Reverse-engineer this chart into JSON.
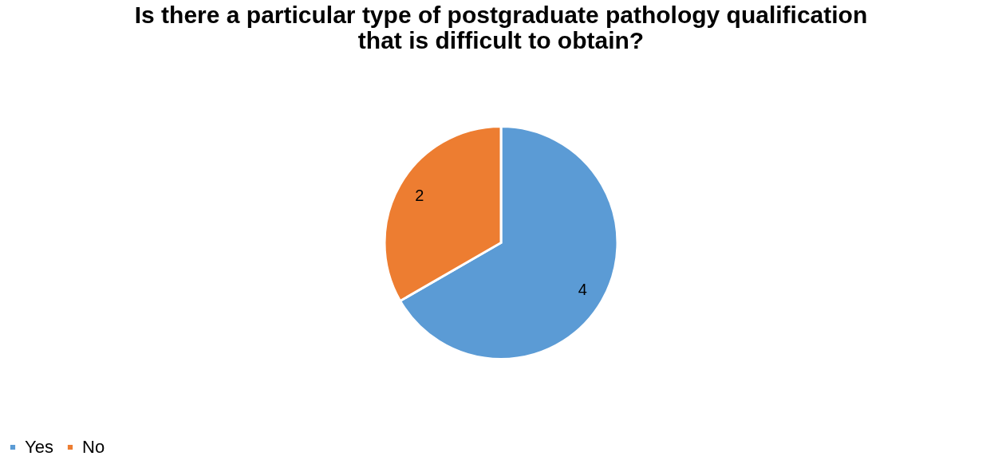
{
  "chart_data": {
    "type": "pie",
    "title": "Is there a particular type of postgraduate pathology qualification that is difficult to obtain?",
    "categories": [
      "Yes",
      "No"
    ],
    "values": [
      4,
      2
    ],
    "colors": [
      "#5b9bd5",
      "#ed7d31"
    ],
    "data_labels": true,
    "legend": "bottom"
  }
}
